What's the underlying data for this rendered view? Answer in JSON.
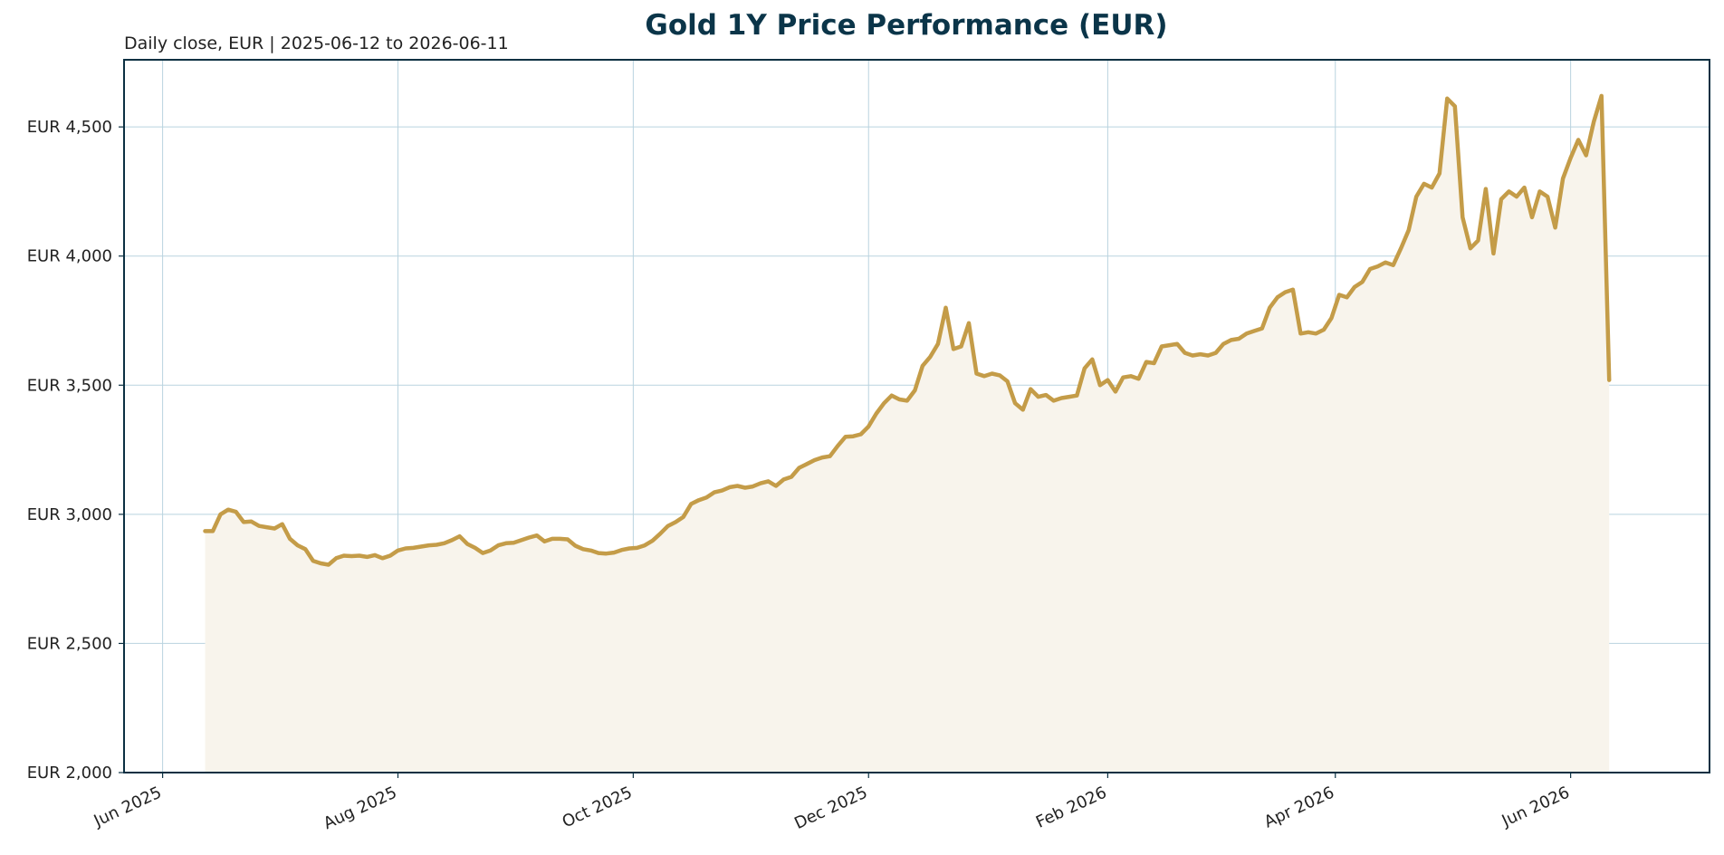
{
  "chart_data": {
    "type": "area",
    "title": "Gold 1Y Price Performance (EUR)",
    "subtitle": "Daily close, EUR | 2025-06-12 to 2026-06-11",
    "xlabel": "",
    "ylabel": "",
    "x_range": [
      "2025-05-22",
      "2026-07-07"
    ],
    "ylim": [
      2000,
      4760
    ],
    "y_ticks": [
      2000,
      2500,
      3000,
      3500,
      4000,
      4500
    ],
    "y_tick_labels": [
      "EUR 2,000",
      "EUR 2,500",
      "EUR 3,000",
      "EUR 3,500",
      "EUR 4,000",
      "EUR 4,500"
    ],
    "x_ticks": [
      "2025-06-01",
      "2025-08-01",
      "2025-10-01",
      "2025-12-01",
      "2026-02-01",
      "2026-04-01",
      "2026-06-01"
    ],
    "x_tick_labels": [
      "Jun 2025",
      "Aug 2025",
      "Oct 2025",
      "Dec 2025",
      "Feb 2026",
      "Apr 2026",
      "Jun 2026"
    ],
    "grid": true,
    "legend": "none",
    "colors": {
      "line": "#c49c48",
      "fill": "#f8f4ec",
      "frame": "#0b3042",
      "grid": "#b9d3df",
      "title": "#0b3549",
      "text": "#222222"
    },
    "series": [
      {
        "points": [
          [
            "2025-06-12",
            2935
          ],
          [
            "2025-06-14",
            2935
          ],
          [
            "2025-06-16",
            3000
          ],
          [
            "2025-06-18",
            3018
          ],
          [
            "2025-06-20",
            3010
          ],
          [
            "2025-06-22",
            2970
          ],
          [
            "2025-06-24",
            2972
          ],
          [
            "2025-06-26",
            2955
          ],
          [
            "2025-06-28",
            2950
          ],
          [
            "2025-06-30",
            2945
          ],
          [
            "2025-07-02",
            2962
          ],
          [
            "2025-07-04",
            2905
          ],
          [
            "2025-07-06",
            2880
          ],
          [
            "2025-07-08",
            2865
          ],
          [
            "2025-07-10",
            2820
          ],
          [
            "2025-07-12",
            2810
          ],
          [
            "2025-07-14",
            2805
          ],
          [
            "2025-07-16",
            2830
          ],
          [
            "2025-07-18",
            2840
          ],
          [
            "2025-07-20",
            2838
          ],
          [
            "2025-07-22",
            2840
          ],
          [
            "2025-07-24",
            2835
          ],
          [
            "2025-07-26",
            2842
          ],
          [
            "2025-07-28",
            2830
          ],
          [
            "2025-07-30",
            2840
          ],
          [
            "2025-08-01",
            2860
          ],
          [
            "2025-08-03",
            2868
          ],
          [
            "2025-08-05",
            2870
          ],
          [
            "2025-08-07",
            2875
          ],
          [
            "2025-08-09",
            2880
          ],
          [
            "2025-08-11",
            2882
          ],
          [
            "2025-08-13",
            2888
          ],
          [
            "2025-08-15",
            2900
          ],
          [
            "2025-08-17",
            2915
          ],
          [
            "2025-08-19",
            2885
          ],
          [
            "2025-08-21",
            2870
          ],
          [
            "2025-08-23",
            2850
          ],
          [
            "2025-08-25",
            2860
          ],
          [
            "2025-08-27",
            2880
          ],
          [
            "2025-08-29",
            2888
          ],
          [
            "2025-08-31",
            2890
          ],
          [
            "2025-09-02",
            2900
          ],
          [
            "2025-09-04",
            2910
          ],
          [
            "2025-09-06",
            2918
          ],
          [
            "2025-09-08",
            2895
          ],
          [
            "2025-09-10",
            2905
          ],
          [
            "2025-09-12",
            2905
          ],
          [
            "2025-09-14",
            2903
          ],
          [
            "2025-09-16",
            2878
          ],
          [
            "2025-09-18",
            2865
          ],
          [
            "2025-09-20",
            2860
          ],
          [
            "2025-09-22",
            2850
          ],
          [
            "2025-09-24",
            2848
          ],
          [
            "2025-09-26",
            2852
          ],
          [
            "2025-09-28",
            2862
          ],
          [
            "2025-09-30",
            2868
          ],
          [
            "2025-10-02",
            2870
          ],
          [
            "2025-10-04",
            2880
          ],
          [
            "2025-10-06",
            2898
          ],
          [
            "2025-10-08",
            2925
          ],
          [
            "2025-10-10",
            2955
          ],
          [
            "2025-10-12",
            2970
          ],
          [
            "2025-10-14",
            2990
          ],
          [
            "2025-10-16",
            3040
          ],
          [
            "2025-10-18",
            3055
          ],
          [
            "2025-10-20",
            3065
          ],
          [
            "2025-10-22",
            3085
          ],
          [
            "2025-10-24",
            3092
          ],
          [
            "2025-10-26",
            3105
          ],
          [
            "2025-10-28",
            3110
          ],
          [
            "2025-10-30",
            3103
          ],
          [
            "2025-11-01",
            3108
          ],
          [
            "2025-11-03",
            3120
          ],
          [
            "2025-11-05",
            3128
          ],
          [
            "2025-11-07",
            3110
          ],
          [
            "2025-11-09",
            3135
          ],
          [
            "2025-11-11",
            3145
          ],
          [
            "2025-11-13",
            3180
          ],
          [
            "2025-11-15",
            3195
          ],
          [
            "2025-11-17",
            3210
          ],
          [
            "2025-11-19",
            3220
          ],
          [
            "2025-11-21",
            3225
          ],
          [
            "2025-11-23",
            3265
          ],
          [
            "2025-11-25",
            3300
          ],
          [
            "2025-11-27",
            3302
          ],
          [
            "2025-11-29",
            3310
          ],
          [
            "2025-12-01",
            3340
          ],
          [
            "2025-12-03",
            3390
          ],
          [
            "2025-12-05",
            3430
          ],
          [
            "2025-12-07",
            3460
          ],
          [
            "2025-12-09",
            3445
          ],
          [
            "2025-12-11",
            3440
          ],
          [
            "2025-12-13",
            3480
          ],
          [
            "2025-12-15",
            3575
          ],
          [
            "2025-12-17",
            3610
          ],
          [
            "2025-12-19",
            3660
          ],
          [
            "2025-12-21",
            3800
          ],
          [
            "2025-12-23",
            3640
          ],
          [
            "2025-12-25",
            3650
          ],
          [
            "2025-12-27",
            3740
          ],
          [
            "2025-12-29",
            3545
          ],
          [
            "2025-12-31",
            3535
          ],
          [
            "2026-01-02",
            3545
          ],
          [
            "2026-01-04",
            3538
          ],
          [
            "2026-01-06",
            3515
          ],
          [
            "2026-01-08",
            3430
          ],
          [
            "2026-01-10",
            3405
          ],
          [
            "2026-01-12",
            3485
          ],
          [
            "2026-01-14",
            3455
          ],
          [
            "2026-01-16",
            3462
          ],
          [
            "2026-01-18",
            3440
          ],
          [
            "2026-01-20",
            3450
          ],
          [
            "2026-01-22",
            3455
          ],
          [
            "2026-01-24",
            3460
          ],
          [
            "2026-01-26",
            3565
          ],
          [
            "2026-01-28",
            3600
          ],
          [
            "2026-01-30",
            3500
          ],
          [
            "2026-02-01",
            3520
          ],
          [
            "2026-02-03",
            3475
          ],
          [
            "2026-02-05",
            3530
          ],
          [
            "2026-02-07",
            3535
          ],
          [
            "2026-02-09",
            3525
          ],
          [
            "2026-02-11",
            3590
          ],
          [
            "2026-02-13",
            3585
          ],
          [
            "2026-02-15",
            3650
          ],
          [
            "2026-02-17",
            3655
          ],
          [
            "2026-02-19",
            3660
          ],
          [
            "2026-02-21",
            3625
          ],
          [
            "2026-02-23",
            3615
          ],
          [
            "2026-02-25",
            3620
          ],
          [
            "2026-02-27",
            3615
          ],
          [
            "2026-03-01",
            3625
          ],
          [
            "2026-03-03",
            3660
          ],
          [
            "2026-03-05",
            3675
          ],
          [
            "2026-03-07",
            3680
          ],
          [
            "2026-03-09",
            3700
          ],
          [
            "2026-03-11",
            3710
          ],
          [
            "2026-03-13",
            3720
          ],
          [
            "2026-03-15",
            3800
          ],
          [
            "2026-03-17",
            3840
          ],
          [
            "2026-03-19",
            3860
          ],
          [
            "2026-03-21",
            3870
          ],
          [
            "2026-03-23",
            3700
          ],
          [
            "2026-03-25",
            3705
          ],
          [
            "2026-03-27",
            3700
          ],
          [
            "2026-03-29",
            3715
          ],
          [
            "2026-03-31",
            3760
          ],
          [
            "2026-04-02",
            3850
          ],
          [
            "2026-04-04",
            3840
          ],
          [
            "2026-04-06",
            3880
          ],
          [
            "2026-04-08",
            3900
          ],
          [
            "2026-04-10",
            3950
          ],
          [
            "2026-04-12",
            3960
          ],
          [
            "2026-04-14",
            3975
          ],
          [
            "2026-04-16",
            3965
          ],
          [
            "2026-04-18",
            4030
          ],
          [
            "2026-04-20",
            4100
          ],
          [
            "2026-04-22",
            4230
          ],
          [
            "2026-04-24",
            4280
          ],
          [
            "2026-04-26",
            4265
          ],
          [
            "2026-04-28",
            4320
          ],
          [
            "2026-04-30",
            4610
          ],
          [
            "2026-05-02",
            4580
          ],
          [
            "2026-05-04",
            4150
          ],
          [
            "2026-05-06",
            4030
          ],
          [
            "2026-05-08",
            4060
          ],
          [
            "2026-05-10",
            4260
          ],
          [
            "2026-05-12",
            4010
          ],
          [
            "2026-05-14",
            4220
          ],
          [
            "2026-05-16",
            4250
          ],
          [
            "2026-05-18",
            4230
          ],
          [
            "2026-05-20",
            4265
          ],
          [
            "2026-05-22",
            4150
          ],
          [
            "2026-05-24",
            4250
          ],
          [
            "2026-05-26",
            4230
          ],
          [
            "2026-05-28",
            4110
          ],
          [
            "2026-05-30",
            4300
          ],
          [
            "2026-06-01",
            4380
          ],
          [
            "2026-06-03",
            4450
          ],
          [
            "2026-06-05",
            4390
          ],
          [
            "2026-06-07",
            4520
          ],
          [
            "2026-06-09",
            4620
          ],
          [
            "2026-06-11",
            3520
          ]
        ]
      }
    ]
  }
}
